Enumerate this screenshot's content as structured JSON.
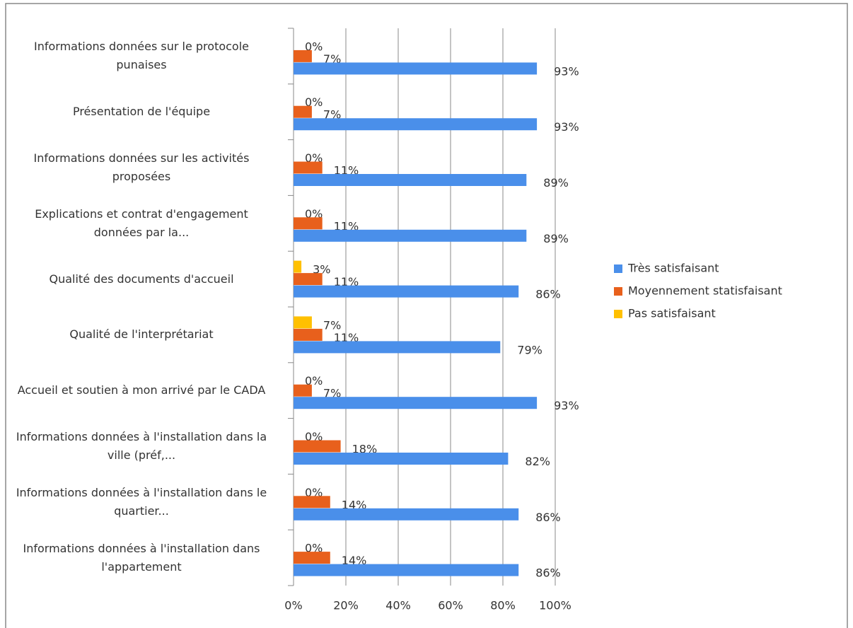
{
  "chart_data": {
    "type": "hbar",
    "categories": [
      "Informations données sur le protocole punaises",
      "Présentation de l'équipe",
      "Informations données sur les activités proposées",
      "Explications et contrat d'engagement données par la...",
      "Qualité des documents d'accueil",
      "Qualité de l'interprétariat",
      "Accueil et soutien à mon arrivé par le CADA",
      "Informations données à l'installation dans la ville (préf,...",
      "Informations données à l'installation dans le quartier...",
      "Informations données à l'installation dans l'appartement"
    ],
    "series": [
      {
        "name": "Pas satisfaisant",
        "color": "#ffc000",
        "values": [
          0,
          0,
          0,
          0,
          3,
          7,
          0,
          0,
          0,
          0
        ],
        "value_labels": [
          "0%",
          "0%",
          "0%",
          "0%",
          "3%",
          "7%",
          "0%",
          "0%",
          "0%",
          "0%"
        ]
      },
      {
        "name": "Moyennement statisfaisant",
        "color": "#e8601c",
        "values": [
          7,
          7,
          11,
          11,
          11,
          11,
          7,
          18,
          14,
          14
        ],
        "value_labels": [
          "7%",
          "7%",
          "11%",
          "11%",
          "11%",
          "11%",
          "7%",
          "18%",
          "14%",
          "14%"
        ]
      },
      {
        "name": "Très satisfaisant",
        "color": "#4a8fea",
        "values": [
          93,
          93,
          89,
          89,
          86,
          79,
          93,
          82,
          86,
          86
        ],
        "value_labels": [
          "93%",
          "93%",
          "89%",
          "89%",
          "86%",
          "79%",
          "93%",
          "82%",
          "86%",
          "86%"
        ]
      }
    ],
    "xlim": [
      0,
      100
    ],
    "xticks": [
      {
        "value": 0,
        "label": "0%"
      },
      {
        "value": 20,
        "label": "20%"
      },
      {
        "value": 40,
        "label": "40%"
      },
      {
        "value": 60,
        "label": "60%"
      },
      {
        "value": 80,
        "label": "80%"
      },
      {
        "value": 100,
        "label": "100%"
      }
    ],
    "grid": true,
    "legend": "right"
  }
}
